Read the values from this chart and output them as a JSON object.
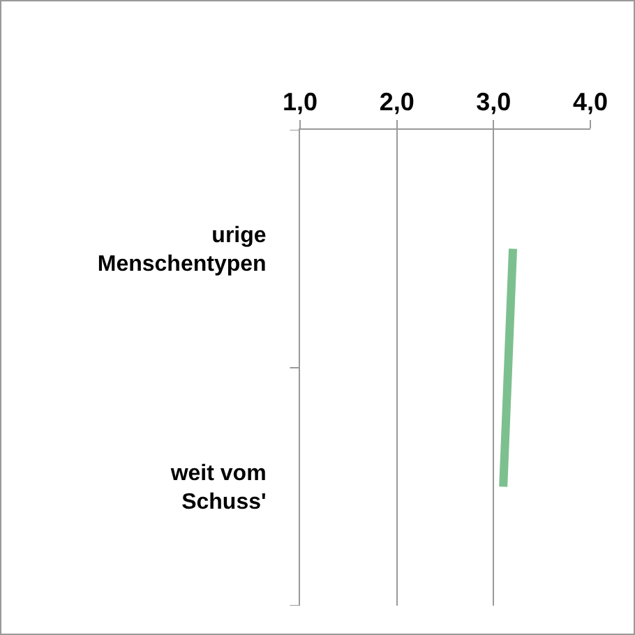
{
  "chart_data": {
    "type": "line",
    "orientation": "horizontal",
    "categories": [
      "urige Menschentypen",
      "weit vom Schuss'"
    ],
    "series": [
      {
        "color": "#7dc08f",
        "values": [
          3.2,
          3.1
        ]
      }
    ],
    "xlim": [
      1,
      4
    ],
    "xticks": [
      {
        "value": 1,
        "label": "1,0"
      },
      {
        "value": 2,
        "label": "2,0"
      },
      {
        "value": 3,
        "label": "3,0"
      },
      {
        "value": 4,
        "label": "4,0"
      }
    ],
    "grid": "x",
    "marker": "none",
    "line_style": "solid"
  }
}
